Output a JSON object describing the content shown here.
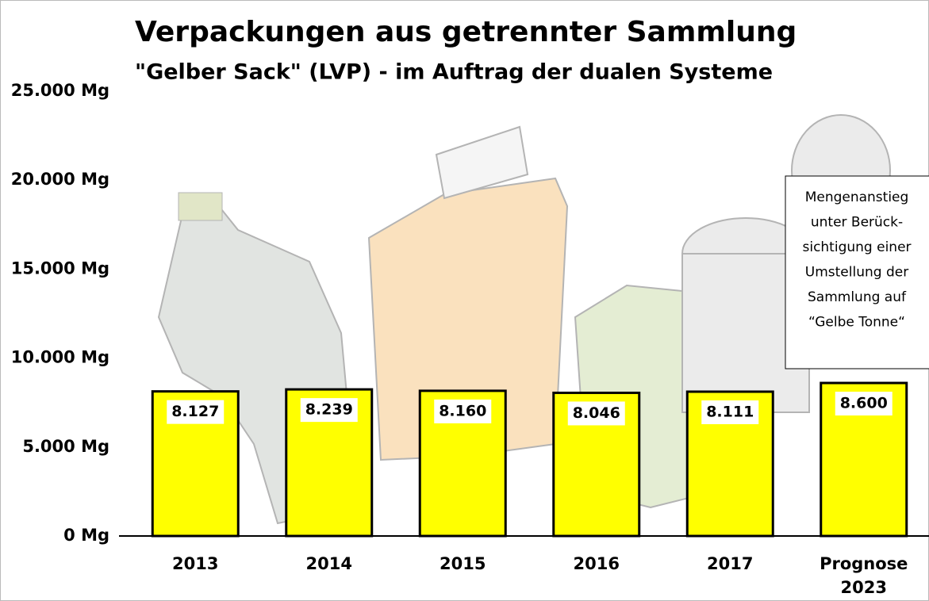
{
  "chart_data": {
    "type": "bar",
    "title": "Verpackungen aus getrennter Sammlung",
    "subtitle": "\"Gelber Sack\" (LVP) - im Auftrag der dualen Systeme",
    "categories": [
      "2013",
      "2014",
      "2015",
      "2016",
      "2017",
      "Prognose 2023"
    ],
    "values": [
      8127,
      8239,
      8160,
      8046,
      8111,
      8600
    ],
    "value_labels": [
      "8.127",
      "8.239",
      "8.160",
      "8.046",
      "8.111",
      "8.600"
    ],
    "color": "#ffff00",
    "ylim": [
      0,
      25000
    ],
    "yticks": [
      {
        "value": 0,
        "label": "0 Mg"
      },
      {
        "value": 5000,
        "label": "5.000 Mg"
      },
      {
        "value": 10000,
        "label": "10.000 Mg"
      },
      {
        "value": 15000,
        "label": "15.000 Mg"
      },
      {
        "value": 20000,
        "label": "20.000 Mg"
      },
      {
        "value": 25000,
        "label": "25.000 Mg"
      }
    ],
    "grid": false,
    "annotation": [
      "Mengenanstieg",
      "unter Berück-",
      "sichtigung einer",
      "Umstellung der",
      "Sammlung auf",
      "“Gelbe Tonne“"
    ]
  }
}
